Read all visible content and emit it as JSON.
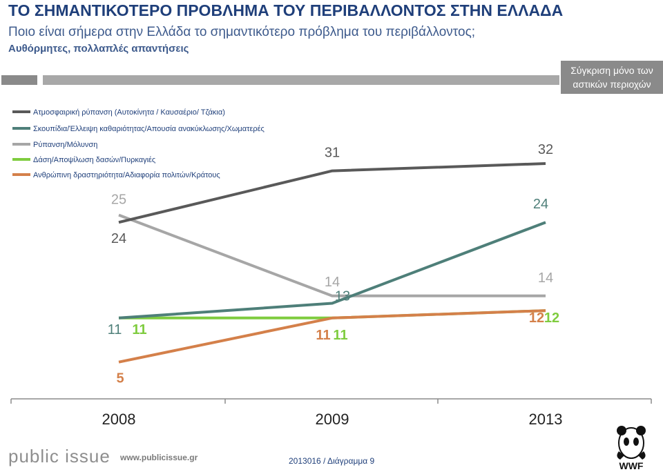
{
  "header": {
    "title": "ΤΟ ΣΗΜΑΝΤΙΚΟΤΕΡΟ ΠΡΟΒΛΗΜΑ ΤΟΥ ΠΕΡΙΒΑΛΛΟΝΤΟΣ ΣΤΗΝ ΕΛΛΑΔΑ",
    "subtitle": "Ποιο είναι σήμερα στην Ελλάδα το σημαντικότερο πρόβλημα του περιβάλλοντος;",
    "note": "Αυθόρμητες, πολλαπλές απαντήσεις",
    "compare_line1": "Σύγκριση μόνο των",
    "compare_line2": "αστικών περιοχών"
  },
  "footer": {
    "brand": "public issue",
    "url": "www.publicissue.gr",
    "code": "2013016 / Διάγραμμα 9",
    "logo_text": "WWF"
  },
  "chart_data": {
    "type": "line",
    "x": [
      "2008",
      "2009",
      "2013"
    ],
    "ylim": [
      0,
      35
    ],
    "grid": false,
    "legend_position": "top-left",
    "series": [
      {
        "name": "Ατμοσφαιρική ρύπανση (Αυτοκίνητα / Καυσαέριο/ Τζάκια)",
        "values": [
          24,
          31,
          32
        ],
        "color": "#595959",
        "labels": [
          "24",
          "31",
          "32"
        ]
      },
      {
        "name": "Σκουπίδια/Έλλειψη καθαριότητας/Απουσία ανακύκλωσης/Χωματερές",
        "values": [
          11,
          13,
          24
        ],
        "color": "#4e7f79",
        "labels": [
          "11",
          "13",
          "24"
        ]
      },
      {
        "name": "Ρύπανση/Μόλυνση",
        "values": [
          25,
          14,
          14
        ],
        "color": "#a6a6a6",
        "labels": [
          "25",
          "14",
          "14"
        ]
      },
      {
        "name": "Δάση/Αποψίλωση δασών/Πυρκαγιές",
        "values": [
          11,
          11,
          12
        ],
        "color": "#7fcc3f",
        "labels": [
          "11",
          "11",
          "12"
        ]
      },
      {
        "name": "Ανθρώπινη δραστηριότητα/Αδιαφορία πολιτών/Κράτους",
        "values": [
          5,
          11,
          12
        ],
        "color": "#d4804a",
        "labels": [
          "5",
          "11",
          "12"
        ]
      }
    ]
  }
}
